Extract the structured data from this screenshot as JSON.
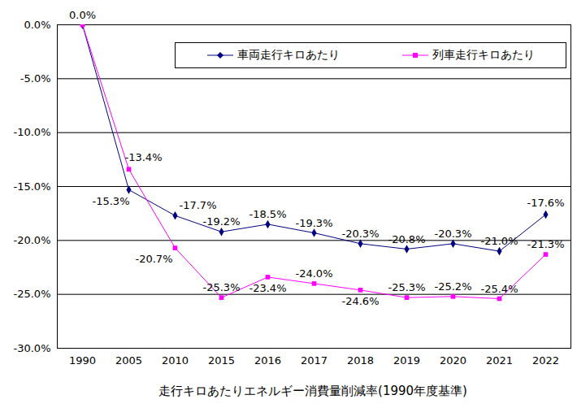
{
  "chart_data": {
    "type": "line",
    "title": "走行キロあたりエネルギー消費量削減率(1990年度基準)",
    "categories": [
      "1990",
      "2005",
      "2010",
      "2015",
      "2016",
      "2017",
      "2018",
      "2019",
      "2020",
      "2021",
      "2022"
    ],
    "series": [
      {
        "name": "車両走行キロあたり",
        "color": "#000080",
        "marker": "diamond",
        "values": [
          0.0,
          -15.3,
          -17.7,
          -19.2,
          -18.5,
          -19.3,
          -20.3,
          -20.8,
          -20.3,
          -21.0,
          -17.6
        ],
        "value_labels": [
          "0.0%",
          "-15.3%",
          "-17.7%",
          "-19.2%",
          "-18.5%",
          "-19.3%",
          "-20.3%",
          "-20.8%",
          "-20.3%",
          "-21.0%",
          "-17.6%"
        ]
      },
      {
        "name": "列車走行キロあたり",
        "color": "#ff00ff",
        "marker": "square",
        "values": [
          0.0,
          -13.4,
          -20.7,
          -25.3,
          -23.4,
          -24.0,
          -24.6,
          -25.3,
          -25.2,
          -25.4,
          -21.3
        ],
        "value_labels": [
          null,
          "-13.4%",
          "-20.7%",
          "-25.3%",
          "-23.4%",
          "-24.0%",
          "-24.6%",
          "-25.3%",
          "-25.2%",
          "-25.4%",
          "-21.3%"
        ]
      }
    ],
    "ylim": [
      -30,
      0
    ],
    "yticks": [
      {
        "value": -30,
        "label": "-30.0%"
      },
      {
        "value": -25,
        "label": "-25.0%"
      },
      {
        "value": -20,
        "label": "-20.0%"
      },
      {
        "value": -15,
        "label": "-15.0%"
      },
      {
        "value": -10,
        "label": "-10.0%"
      },
      {
        "value": -5,
        "label": "-5.0%"
      },
      {
        "value": 0,
        "label": "0.0%"
      }
    ],
    "grid": true,
    "legend": "top-right",
    "data_labels": true
  }
}
